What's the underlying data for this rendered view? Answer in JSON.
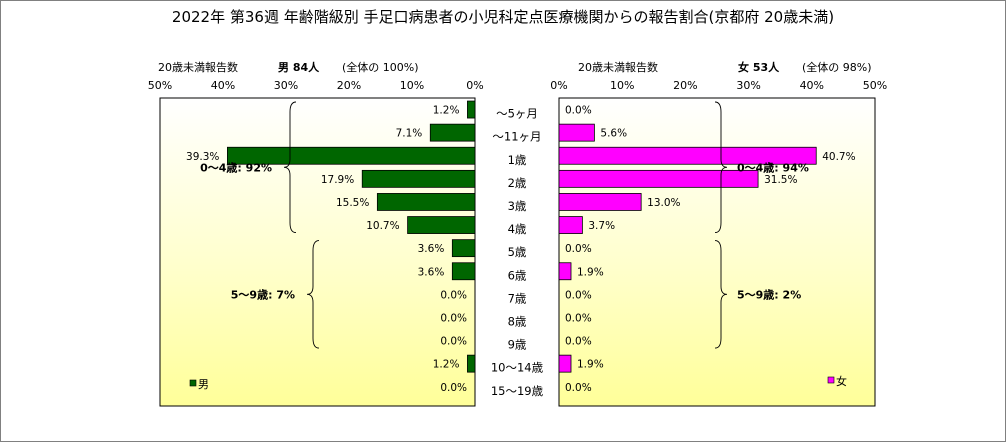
{
  "title": "2022年 第36週  年齢階級別 手足口病患者の小児科定点医療機関からの報告割合(京都府 20歳未満)",
  "colors": {
    "male": "#006600",
    "female": "#ff00ff",
    "plot_bg_top": "#ffffff",
    "plot_bg_bottom": "#ffff99"
  },
  "male": {
    "count_label": "20歳未満報告数",
    "total": "男  84人",
    "share": "(全体の  100%)",
    "legend": "男",
    "groups": [
      {
        "label": "0～4歳: 92%",
        "from": 0,
        "to": 5
      },
      {
        "label": "5～9歳: 7%",
        "from": 6,
        "to": 10
      }
    ]
  },
  "female": {
    "count_label": "20歳未満報告数",
    "total": "女  53人",
    "share": "(全体の  98%)",
    "legend": "女",
    "groups": [
      {
        "label": "0～4歳: 94%",
        "from": 0,
        "to": 5
      },
      {
        "label": "5～9歳: 2%",
        "from": 6,
        "to": 10
      }
    ]
  },
  "chart_data": {
    "type": "bar",
    "orientation": "horizontal",
    "layout": "population-pyramid",
    "categories": [
      "～5ヶ月",
      "～11ヶ月",
      "1歳",
      "2歳",
      "3歳",
      "4歳",
      "5歳",
      "6歳",
      "7歳",
      "8歳",
      "9歳",
      "10～14歳",
      "15～19歳"
    ],
    "series": [
      {
        "name": "男",
        "values": [
          1.2,
          7.1,
          39.3,
          17.9,
          15.5,
          10.7,
          3.6,
          3.6,
          0.0,
          0.0,
          0.0,
          1.2,
          0.0
        ],
        "labels": [
          "1.2%",
          "7.1%",
          "39.3%",
          "17.9%",
          "15.5%",
          "10.7%",
          "3.6%",
          "3.6%",
          "0.0%",
          "0.0%",
          "0.0%",
          "1.2%",
          "0.0%"
        ]
      },
      {
        "name": "女",
        "values": [
          0.0,
          5.6,
          40.7,
          31.5,
          13.0,
          3.7,
          0.0,
          1.9,
          0.0,
          0.0,
          0.0,
          1.9,
          0.0
        ],
        "labels": [
          "0.0%",
          "5.6%",
          "40.7%",
          "31.5%",
          "13.0%",
          "3.7%",
          "0.0%",
          "1.9%",
          "0.0%",
          "0.0%",
          "0.0%",
          "1.9%",
          "0.0%"
        ]
      }
    ],
    "male_ticks": [
      "50%",
      "40%",
      "30%",
      "20%",
      "10%",
      "0%"
    ],
    "female_ticks": [
      "0%",
      "10%",
      "20%",
      "30%",
      "40%",
      "50%"
    ],
    "xlim": [
      0,
      50
    ],
    "grid": false,
    "legend": [
      "bottom-left",
      "bottom-right"
    ]
  }
}
